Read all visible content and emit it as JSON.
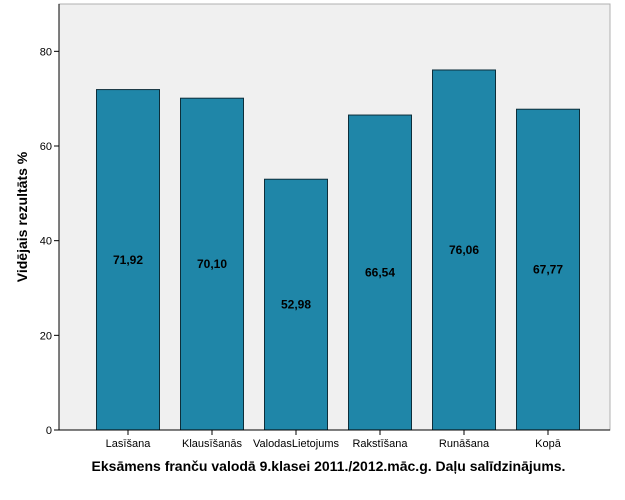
{
  "chart_data": {
    "type": "bar",
    "categories": [
      "Lasīšana",
      "Klausīšanās",
      "ValodasLietojums",
      "Rakstīšana",
      "Runāšana",
      "Kopā"
    ],
    "values": [
      71.92,
      70.1,
      52.98,
      66.54,
      76.06,
      67.77
    ],
    "data_labels": [
      "71,92",
      "70,10",
      "52,98",
      "66,54",
      "76,06",
      "67,77"
    ],
    "title": "",
    "xlabel": "Eksāmens franču valodā 9.klasei 2011./2012.māc.g. Daļu salīdzinājums.",
    "ylabel": "Vidējais rezultāts %",
    "ylim": [
      0,
      90
    ],
    "yticks": [
      0,
      20,
      40,
      60,
      80
    ],
    "grid": false,
    "legend": "none",
    "colors": {
      "bar_fill": "#1f86a8",
      "bar_stroke": "#0d2e3a",
      "plot_background": "#f0f0f0",
      "axis": "#000000"
    }
  }
}
